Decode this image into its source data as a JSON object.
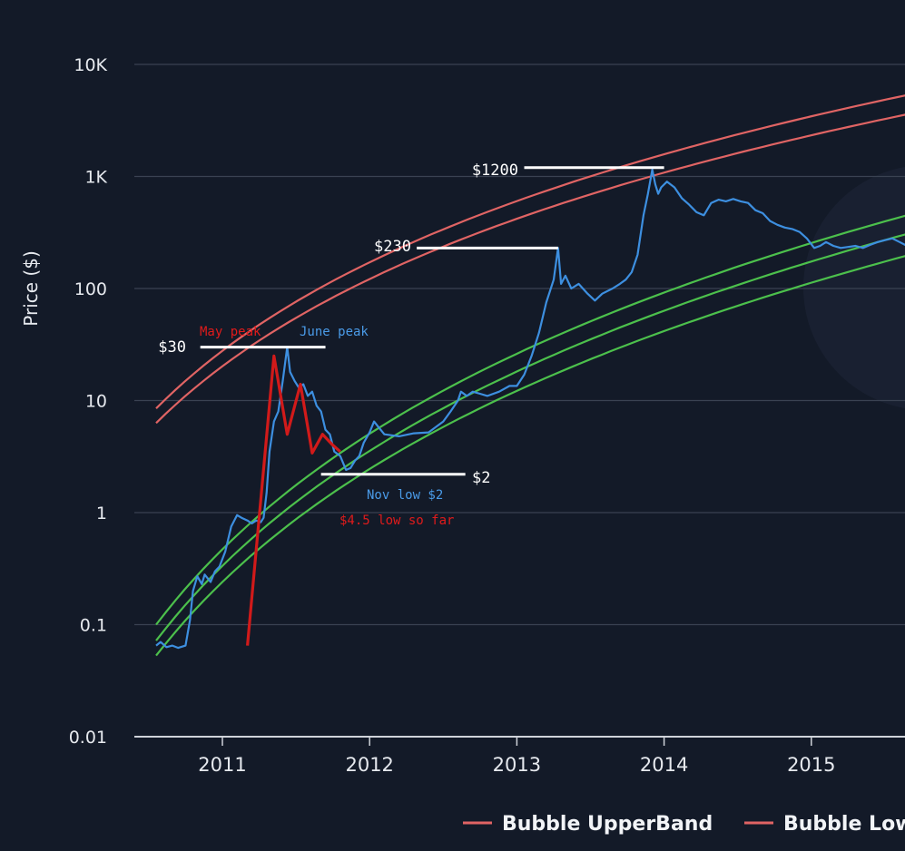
{
  "chart_data": {
    "type": "line",
    "ylabel": "Price ($)",
    "yscale": "log",
    "ylim": [
      0.01,
      10000
    ],
    "xlim": [
      2010.4,
      2015.7
    ],
    "y_ticks": [
      {
        "value": 10000,
        "label": "10K"
      },
      {
        "value": 1000,
        "label": "1K"
      },
      {
        "value": 100,
        "label": "100"
      },
      {
        "value": 10,
        "label": "10"
      },
      {
        "value": 1,
        "label": "1"
      },
      {
        "value": 0.1,
        "label": "0.1"
      },
      {
        "value": 0.01,
        "label": "0.01"
      }
    ],
    "x_ticks": [
      {
        "value": 2011,
        "label": "2011"
      },
      {
        "value": 2012,
        "label": "2012"
      },
      {
        "value": 2013,
        "label": "2013"
      },
      {
        "value": 2014,
        "label": "2014"
      },
      {
        "value": 2015,
        "label": "2015"
      }
    ],
    "grid": true,
    "legend": {
      "position": "bottom",
      "items": [
        {
          "label": "Bubble UpperBand",
          "color": "#e06464"
        },
        {
          "label": "Bubble Low",
          "color": "#e06464"
        }
      ]
    },
    "colors": {
      "background": "#131a28",
      "grid": "#3a4252",
      "price": "#3d8fe0",
      "bubble_band": "#e06464",
      "support_band": "#4cc04c",
      "fractal": "#d11a1a",
      "annotation_white": "#ffffff",
      "annotation_red": "#e01b1b",
      "annotation_blue": "#4a9be8",
      "watermark": "#1f2738"
    },
    "series": [
      {
        "role": "price",
        "points": [
          [
            2010.55,
            0.065
          ],
          [
            2010.58,
            0.07
          ],
          [
            2010.62,
            0.063
          ],
          [
            2010.66,
            0.065
          ],
          [
            2010.7,
            0.062
          ],
          [
            2010.75,
            0.065
          ],
          [
            2010.78,
            0.11
          ],
          [
            2010.8,
            0.2
          ],
          [
            2010.83,
            0.27
          ],
          [
            2010.86,
            0.23
          ],
          [
            2010.88,
            0.28
          ],
          [
            2010.92,
            0.24
          ],
          [
            2010.95,
            0.3
          ],
          [
            2010.98,
            0.33
          ],
          [
            2011.02,
            0.45
          ],
          [
            2011.06,
            0.75
          ],
          [
            2011.1,
            0.95
          ],
          [
            2011.13,
            0.9
          ],
          [
            2011.17,
            0.85
          ],
          [
            2011.2,
            0.8
          ],
          [
            2011.23,
            0.85
          ],
          [
            2011.26,
            0.82
          ],
          [
            2011.28,
            0.9
          ],
          [
            2011.3,
            1.5
          ],
          [
            2011.32,
            3.5
          ],
          [
            2011.35,
            6.5
          ],
          [
            2011.38,
            8
          ],
          [
            2011.41,
            15
          ],
          [
            2011.44,
            30
          ],
          [
            2011.46,
            18
          ],
          [
            2011.49,
            15
          ],
          [
            2011.52,
            13
          ],
          [
            2011.55,
            14
          ],
          [
            2011.58,
            11
          ],
          [
            2011.61,
            12
          ],
          [
            2011.64,
            9
          ],
          [
            2011.67,
            8
          ],
          [
            2011.7,
            5.5
          ],
          [
            2011.73,
            5
          ],
          [
            2011.76,
            3.5
          ],
          [
            2011.8,
            3.2
          ],
          [
            2011.84,
            2.4
          ],
          [
            2011.87,
            2.5
          ],
          [
            2011.9,
            2.9
          ],
          [
            2011.93,
            3.2
          ],
          [
            2011.96,
            4.2
          ],
          [
            2012.0,
            5.2
          ],
          [
            2012.03,
            6.5
          ],
          [
            2012.06,
            5.8
          ],
          [
            2012.1,
            5
          ],
          [
            2012.15,
            4.9
          ],
          [
            2012.2,
            4.8
          ],
          [
            2012.3,
            5.1
          ],
          [
            2012.4,
            5.2
          ],
          [
            2012.5,
            6.5
          ],
          [
            2012.55,
            8
          ],
          [
            2012.6,
            10
          ],
          [
            2012.62,
            12
          ],
          [
            2012.66,
            11
          ],
          [
            2012.7,
            12
          ],
          [
            2012.75,
            11.5
          ],
          [
            2012.8,
            11
          ],
          [
            2012.88,
            12
          ],
          [
            2012.95,
            13.5
          ],
          [
            2013.0,
            13.5
          ],
          [
            2013.05,
            17
          ],
          [
            2013.1,
            25
          ],
          [
            2013.15,
            40
          ],
          [
            2013.2,
            75
          ],
          [
            2013.25,
            120
          ],
          [
            2013.28,
            230
          ],
          [
            2013.3,
            110
          ],
          [
            2013.33,
            130
          ],
          [
            2013.37,
            100
          ],
          [
            2013.42,
            110
          ],
          [
            2013.48,
            90
          ],
          [
            2013.53,
            78
          ],
          [
            2013.58,
            90
          ],
          [
            2013.65,
            100
          ],
          [
            2013.7,
            110
          ],
          [
            2013.74,
            120
          ],
          [
            2013.78,
            140
          ],
          [
            2013.82,
            200
          ],
          [
            2013.86,
            450
          ],
          [
            2013.89,
            700
          ],
          [
            2013.92,
            1150
          ],
          [
            2013.94,
            850
          ],
          [
            2013.96,
            700
          ],
          [
            2013.98,
            800
          ],
          [
            2014.02,
            900
          ],
          [
            2014.07,
            800
          ],
          [
            2014.12,
            640
          ],
          [
            2014.17,
            560
          ],
          [
            2014.22,
            480
          ],
          [
            2014.27,
            450
          ],
          [
            2014.32,
            580
          ],
          [
            2014.37,
            620
          ],
          [
            2014.42,
            600
          ],
          [
            2014.47,
            630
          ],
          [
            2014.52,
            600
          ],
          [
            2014.57,
            580
          ],
          [
            2014.62,
            500
          ],
          [
            2014.67,
            470
          ],
          [
            2014.72,
            400
          ],
          [
            2014.77,
            370
          ],
          [
            2014.82,
            350
          ],
          [
            2014.87,
            340
          ],
          [
            2014.92,
            320
          ],
          [
            2014.97,
            280
          ],
          [
            2015.02,
            230
          ],
          [
            2015.06,
            240
          ],
          [
            2015.1,
            260
          ],
          [
            2015.15,
            240
          ],
          [
            2015.2,
            230
          ],
          [
            2015.25,
            235
          ],
          [
            2015.3,
            240
          ],
          [
            2015.35,
            230
          ],
          [
            2015.4,
            245
          ],
          [
            2015.45,
            260
          ],
          [
            2015.5,
            270
          ],
          [
            2015.55,
            280
          ],
          [
            2015.6,
            260
          ],
          [
            2015.65,
            240
          ],
          [
            2015.7,
            230
          ]
        ]
      },
      {
        "role": "fractal",
        "points": [
          [
            2011.17,
            0.065
          ],
          [
            2011.35,
            25
          ],
          [
            2011.44,
            5
          ],
          [
            2011.53,
            14
          ],
          [
            2011.61,
            3.4
          ],
          [
            2011.68,
            5
          ],
          [
            2011.75,
            4
          ],
          [
            2011.8,
            3.5
          ]
        ]
      }
    ],
    "bands": [
      {
        "role": "bubble_upper",
        "start": [
          2010.55,
          8.5
        ],
        "end": [
          2015.7,
          5500
        ]
      },
      {
        "role": "bubble_lower",
        "start": [
          2010.55,
          6.3
        ],
        "end": [
          2015.7,
          3700
        ]
      },
      {
        "role": "support_upper",
        "start": [
          2010.55,
          0.1
        ],
        "end": [
          2015.7,
          470
        ]
      },
      {
        "role": "support_mid",
        "start": [
          2010.55,
          0.072
        ],
        "end": [
          2015.7,
          320
        ]
      },
      {
        "role": "support_lower",
        "start": [
          2010.55,
          0.053
        ],
        "end": [
          2015.7,
          205
        ]
      }
    ],
    "annotations": [
      {
        "text": "$30",
        "color": "white",
        "line": [
          2010.85,
          2011.7
        ],
        "y": 30
      },
      {
        "text": "$230",
        "color": "white",
        "line": [
          2012.32,
          2013.28
        ],
        "y": 230
      },
      {
        "text": "$1200",
        "color": "white",
        "line": [
          2013.05,
          2014.0
        ],
        "y": 1200
      },
      {
        "text": "$2",
        "color": "white",
        "line": [
          2011.67,
          2012.65
        ],
        "y": 2.2
      },
      {
        "text": "May peak",
        "color": "red"
      },
      {
        "text": "June peak",
        "color": "blue"
      },
      {
        "text": "Nov low $2",
        "color": "blue"
      },
      {
        "text": "$4.5 low so far",
        "color": "red"
      }
    ]
  }
}
